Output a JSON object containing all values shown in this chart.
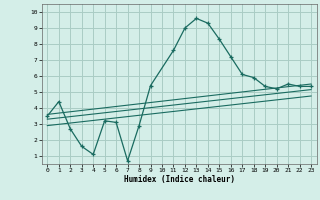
{
  "xlabel": "Humidex (Indice chaleur)",
  "bg_color": "#d4eee8",
  "grid_color": "#aaccc4",
  "line_color": "#1a6b60",
  "xlim": [
    -0.5,
    23.5
  ],
  "ylim": [
    0.5,
    10.5
  ],
  "xticks": [
    0,
    1,
    2,
    3,
    4,
    5,
    6,
    7,
    8,
    9,
    10,
    11,
    12,
    13,
    14,
    15,
    16,
    17,
    18,
    19,
    20,
    21,
    22,
    23
  ],
  "yticks": [
    1,
    2,
    3,
    4,
    5,
    6,
    7,
    8,
    9,
    10
  ],
  "curve1_x": [
    0,
    1,
    2,
    3,
    4,
    5,
    6,
    7,
    8,
    9,
    11,
    12,
    13,
    14,
    15,
    16,
    17,
    18,
    19,
    20,
    21,
    22,
    23
  ],
  "curve1_y": [
    3.5,
    4.4,
    2.7,
    1.6,
    1.1,
    3.2,
    3.1,
    0.7,
    2.9,
    5.4,
    7.6,
    9.0,
    9.6,
    9.3,
    8.3,
    7.2,
    6.1,
    5.9,
    5.35,
    5.2,
    5.5,
    5.35,
    5.35
  ],
  "line2_x": [
    0,
    23
  ],
  "line2_y": [
    3.6,
    5.5
  ],
  "line3_x": [
    0,
    23
  ],
  "line3_y": [
    3.3,
    5.15
  ],
  "line4_x": [
    0,
    23
  ],
  "line4_y": [
    2.9,
    4.75
  ]
}
